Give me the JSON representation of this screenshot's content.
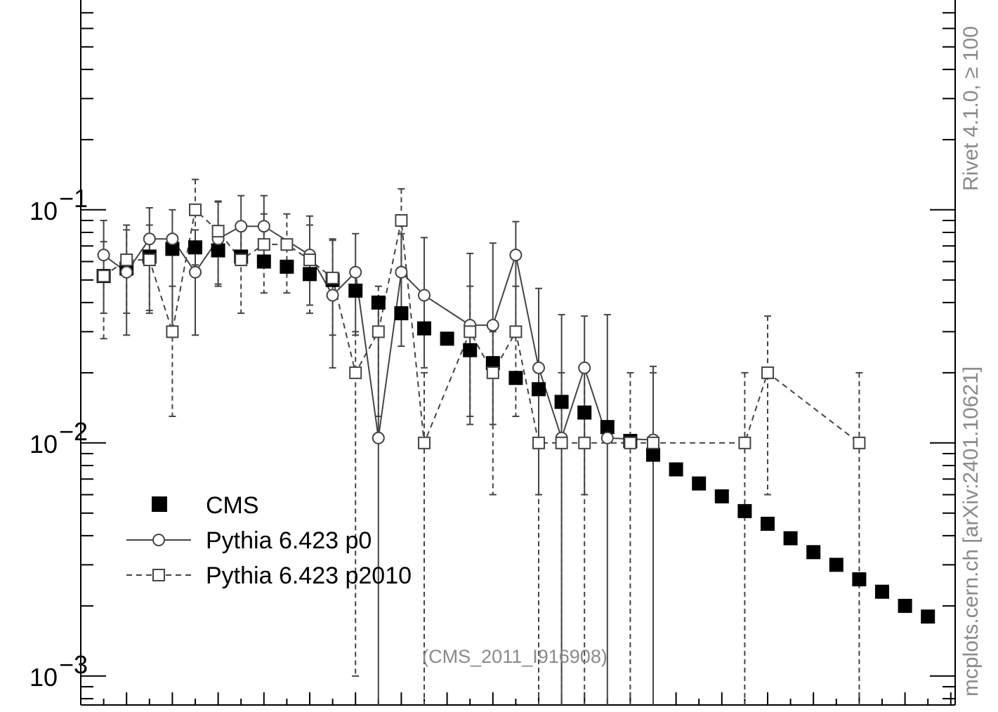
{
  "chart_data": {
    "type": "scatter",
    "yscale": "log",
    "ylim": [
      0.0006,
      1.0
    ],
    "xlim": [
      0,
      38
    ],
    "yticks_major": [
      {
        "value": 0.1,
        "label": "10",
        "exp": "−1"
      },
      {
        "value": 0.01,
        "label": "10",
        "exp": "−2"
      },
      {
        "value": 0.001,
        "label": "10",
        "exp": "−3"
      }
    ],
    "legend": {
      "position": "bottom-left"
    },
    "series": [
      {
        "name": "CMS",
        "style": "filled-square",
        "color": "#000000",
        "x": [
          1,
          2,
          3,
          4,
          5,
          6,
          7,
          8,
          9,
          10,
          11,
          12,
          13,
          14,
          15,
          16,
          17,
          18,
          19,
          20,
          21,
          22,
          23,
          24,
          25,
          26,
          27,
          28,
          29,
          30,
          31,
          32,
          33,
          34,
          35,
          36,
          37
        ],
        "y": [
          0.052,
          0.056,
          0.063,
          0.068,
          0.069,
          0.067,
          0.063,
          0.06,
          0.057,
          0.053,
          0.05,
          0.045,
          0.04,
          0.036,
          0.031,
          0.028,
          0.025,
          0.022,
          0.019,
          0.017,
          0.015,
          0.0135,
          0.0117,
          0.0102,
          0.0089,
          0.0077,
          0.0067,
          0.0059,
          0.0051,
          0.0045,
          0.0039,
          0.0034,
          0.003,
          0.0026,
          0.0023,
          0.002,
          0.0018
        ]
      },
      {
        "name": "Pythia 6.423 p0",
        "style": "open-circle-solid",
        "color": "#444444",
        "x": [
          1,
          2,
          3,
          4,
          5,
          6,
          7,
          8,
          10,
          11,
          12,
          13,
          14,
          15,
          17,
          18,
          19,
          20,
          21,
          22,
          23,
          25
        ],
        "y": [
          0.064,
          0.054,
          0.075,
          0.075,
          0.054,
          0.075,
          0.085,
          0.085,
          0.064,
          0.043,
          0.054,
          0.0105,
          0.054,
          0.043,
          0.032,
          0.032,
          0.064,
          0.021,
          0.0105,
          0.021,
          0.0105,
          0.0103
        ],
        "yerr_low": [
          0.028,
          0.025,
          0.038,
          0.045,
          0.025,
          0.028,
          0.025,
          0.028,
          0.025,
          0.022,
          0.025,
          0.01,
          0.028,
          0.022,
          0.02,
          0.02,
          0.035,
          0.015,
          0.01,
          0.015,
          0.01,
          0.0101
        ],
        "yerr_high": [
          0.026,
          0.028,
          0.027,
          0.025,
          0.028,
          0.033,
          0.03,
          0.03,
          0.03,
          0.032,
          0.025,
          0.028,
          0.025,
          0.033,
          0.033,
          0.04,
          0.025,
          0.025,
          0.025,
          0.014,
          0.025,
          0.011
        ]
      },
      {
        "name": "Pythia 6.423 p2010",
        "style": "open-square-dashed",
        "color": "#444444",
        "x": [
          1,
          2,
          3,
          4,
          5,
          6,
          7,
          8,
          9,
          10,
          11,
          12,
          13,
          14,
          15,
          17,
          18,
          19,
          20,
          21,
          22,
          24,
          25,
          29,
          30,
          34
        ],
        "y": [
          0.052,
          0.061,
          0.061,
          0.03,
          0.1,
          0.081,
          0.061,
          0.071,
          0.071,
          0.061,
          0.051,
          0.02,
          0.03,
          0.09,
          0.01,
          0.03,
          0.02,
          0.03,
          0.01,
          0.01,
          0.01,
          0.01,
          0.01,
          0.01,
          0.02,
          0.01
        ],
        "yerr_low": [
          0.024,
          0.025,
          0.025,
          0.017,
          0.042,
          0.033,
          0.025,
          0.027,
          0.027,
          0.025,
          0.022,
          0.019,
          0.017,
          0.035,
          0.0098,
          0.017,
          0.014,
          0.017,
          0.0098,
          0.0098,
          0.0098,
          0.0098,
          0.0098,
          0.0098,
          0.014,
          0.0098
        ],
        "yerr_high": [
          0.021,
          0.025,
          0.025,
          0.017,
          0.035,
          0.028,
          0.025,
          0.025,
          0.025,
          0.025,
          0.023,
          0.01,
          0.017,
          0.033,
          0.01,
          0.017,
          0.01,
          0.017,
          0.01,
          0.01,
          0.01,
          0.01,
          0.01,
          0.01,
          0.015,
          0.01
        ]
      }
    ]
  },
  "watermark": "(CMS_2011_I916908)",
  "side_text_1": "Rivet 4.1.0, ≥ 100",
  "side_text_2": "mcplots.cern.ch [arXiv:2401.10621]"
}
